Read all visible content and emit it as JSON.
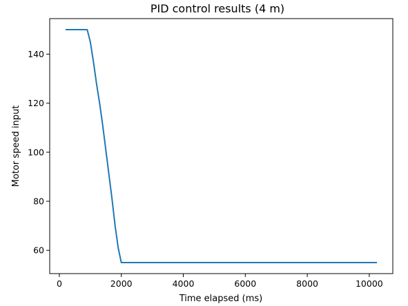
{
  "chart_data": {
    "type": "line",
    "title": "PID control results (4 m)",
    "xlabel": "Time elapsed (ms)",
    "ylabel": "Motor speed input",
    "xlim": [
      -310,
      10760
    ],
    "ylim": [
      50.5,
      154.5
    ],
    "xticks": [
      0,
      2000,
      4000,
      6000,
      8000,
      10000
    ],
    "yticks": [
      60,
      80,
      100,
      120,
      140
    ],
    "grid": false,
    "legend": "none",
    "series": [
      {
        "color": "#1f77b4",
        "x": [
          200,
          900,
          1000,
          1100,
          1200,
          1300,
          1400,
          1500,
          1600,
          1700,
          1800,
          1900,
          2000,
          10250
        ],
        "y": [
          150,
          150,
          145,
          137,
          128,
          120,
          111,
          101,
          91,
          81,
          70,
          61,
          55,
          55
        ]
      }
    ]
  }
}
